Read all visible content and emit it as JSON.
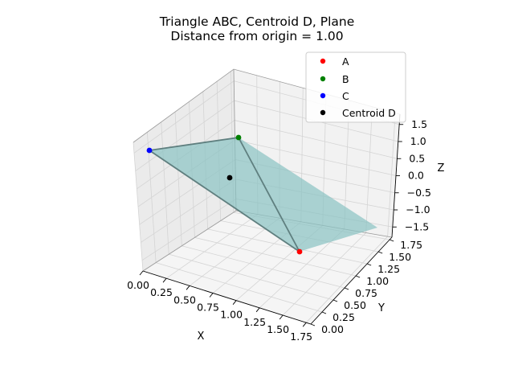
{
  "chart_data": {
    "type": "scatter3d",
    "title": "Triangle ABC, Centroid D, Plane",
    "subtitle": "Distance from origin = 1.00",
    "xlabel": "X",
    "ylabel": "Y",
    "zlabel": "Z",
    "xlim": [
      0,
      1.8
    ],
    "ylim": [
      0,
      1.8
    ],
    "zlim": [
      -1.8,
      1.8
    ],
    "x_ticks": [
      "0.00",
      "0.25",
      "0.50",
      "0.75",
      "1.00",
      "1.25",
      "1.50",
      "1.75"
    ],
    "y_ticks": [
      "0.00",
      "0.25",
      "0.50",
      "0.75",
      "1.00",
      "1.25",
      "1.50",
      "1.75"
    ],
    "z_ticks": [
      "−1.5",
      "−1.0",
      "−0.5",
      "0.0",
      "0.5",
      "1.0",
      "1.5"
    ],
    "grid": true,
    "legend_position": "top-right",
    "points": [
      {
        "name": "A",
        "x": 1.73,
        "y": 0,
        "z": 0,
        "color": "#ff0000"
      },
      {
        "name": "B",
        "x": 0,
        "y": 1.73,
        "z": 0,
        "color": "#008000"
      },
      {
        "name": "C",
        "x": 0,
        "y": 0,
        "z": 1.73,
        "color": "#0000ff"
      },
      {
        "name": "Centroid D",
        "x": 0.58,
        "y": 0.58,
        "z": 0.58,
        "color": "#000000"
      }
    ],
    "triangle_edges_color": "#5f7f7f",
    "plane_color": "#8cc4c4"
  }
}
